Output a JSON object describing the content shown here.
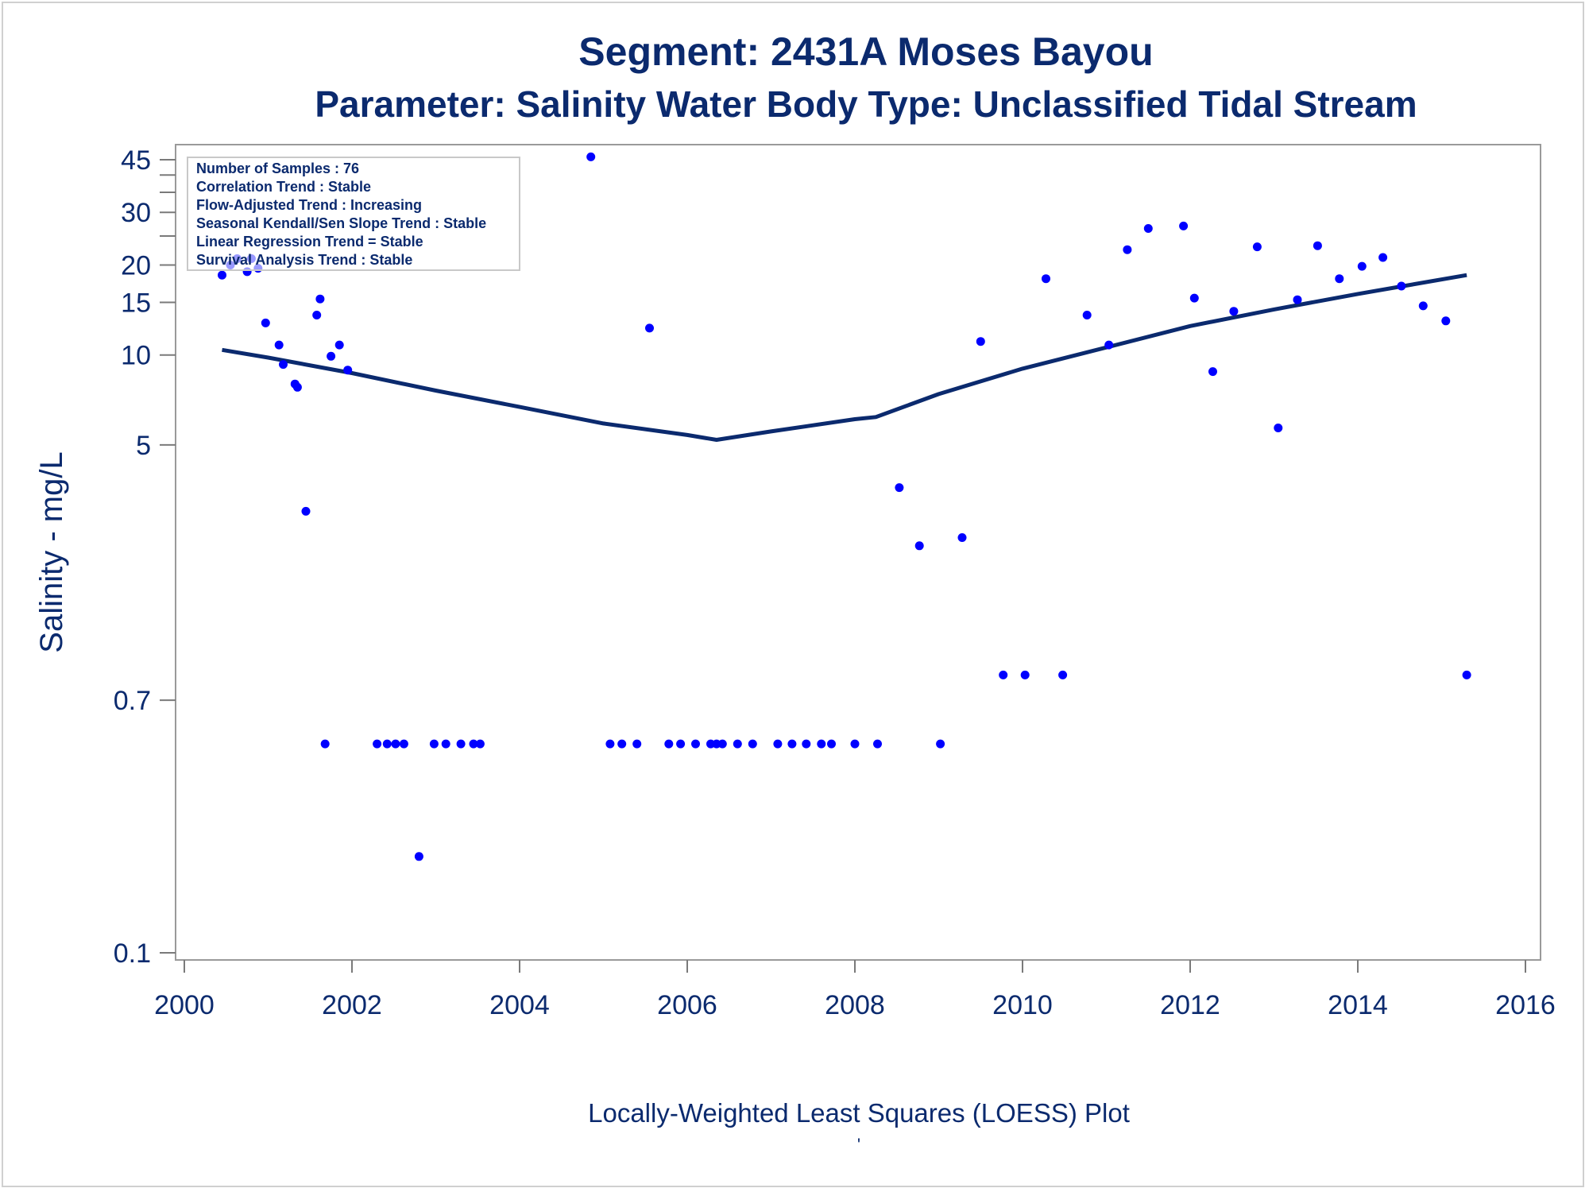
{
  "chart_data": {
    "type": "scatter",
    "title": "Segment: 2431A  Moses Bayou",
    "subtitle": "Parameter: Salinity   Water Body Type: Unclassified Tidal Stream",
    "xlabel": "Locally-Weighted Least Squares (LOESS) Plot",
    "ylabel": "Salinity - mg/L",
    "footnote": "'",
    "y_scale": "log",
    "xlim": [
      2000,
      2016
    ],
    "ylim": [
      0.1,
      50
    ],
    "x_ticks": [
      2000,
      2002,
      2004,
      2006,
      2008,
      2010,
      2012,
      2014,
      2016
    ],
    "x_tick_labels": [
      "2000",
      "2002",
      "2004",
      "2006",
      "2008",
      "2010",
      "2012",
      "2014",
      "2016"
    ],
    "y_ticks": [
      0.1,
      0.7,
      5,
      10,
      15,
      20,
      30,
      45
    ],
    "y_tick_labels": [
      "0.1",
      "0.7",
      "5",
      "10",
      "15",
      "20",
      "30",
      "45"
    ],
    "y_minor_ticks": [
      25,
      35,
      40
    ],
    "grid": false,
    "colors": {
      "points": "#0000ff",
      "line": "#0b2a6e",
      "text": "#0b2a6e"
    },
    "stats_box": {
      "placement": "top-left",
      "lines": [
        "Number of Samples : 76",
        "Correlation Trend : Stable",
        "Flow-Adjusted Trend : Increasing",
        "Seasonal Kendall/Sen Slope Trend : Stable",
        "Linear Regression Trend = Stable",
        "Survival Analysis Trend : Stable"
      ]
    },
    "series": [
      {
        "type": "scatter",
        "points": [
          [
            2000.45,
            18.5
          ],
          [
            2000.55,
            20.0
          ],
          [
            2000.63,
            21.0
          ],
          [
            2000.75,
            19.0
          ],
          [
            2000.8,
            21.0
          ],
          [
            2000.88,
            19.5
          ],
          [
            2000.97,
            12.8
          ],
          [
            2001.13,
            10.8
          ],
          [
            2001.18,
            9.3
          ],
          [
            2001.32,
            8.0
          ],
          [
            2001.35,
            7.8
          ],
          [
            2001.45,
            3.0
          ],
          [
            2001.58,
            13.6
          ],
          [
            2001.62,
            15.4
          ],
          [
            2001.68,
            0.5
          ],
          [
            2001.75,
            9.9
          ],
          [
            2001.85,
            10.8
          ],
          [
            2001.95,
            8.9
          ],
          [
            2002.3,
            0.5
          ],
          [
            2002.42,
            0.5
          ],
          [
            2002.52,
            0.5
          ],
          [
            2002.62,
            0.5
          ],
          [
            2002.8,
            0.21
          ],
          [
            2002.98,
            0.5
          ],
          [
            2003.12,
            0.5
          ],
          [
            2003.3,
            0.5
          ],
          [
            2003.45,
            0.5
          ],
          [
            2003.53,
            0.5
          ],
          [
            2004.85,
            46.0
          ],
          [
            2005.08,
            0.5
          ],
          [
            2005.22,
            0.5
          ],
          [
            2005.4,
            0.5
          ],
          [
            2005.55,
            12.3
          ],
          [
            2005.78,
            0.5
          ],
          [
            2005.92,
            0.5
          ],
          [
            2006.1,
            0.5
          ],
          [
            2006.28,
            0.5
          ],
          [
            2006.35,
            0.5
          ],
          [
            2006.42,
            0.5
          ],
          [
            2006.6,
            0.5
          ],
          [
            2006.78,
            0.5
          ],
          [
            2007.08,
            0.5
          ],
          [
            2007.25,
            0.5
          ],
          [
            2007.42,
            0.5
          ],
          [
            2007.6,
            0.5
          ],
          [
            2007.72,
            0.5
          ],
          [
            2008.0,
            0.5
          ],
          [
            2008.27,
            0.5
          ],
          [
            2008.53,
            3.6
          ],
          [
            2008.77,
            2.3
          ],
          [
            2009.02,
            0.5
          ],
          [
            2009.28,
            2.45
          ],
          [
            2009.5,
            11.1
          ],
          [
            2009.77,
            0.85
          ],
          [
            2010.03,
            0.85
          ],
          [
            2010.28,
            18.0
          ],
          [
            2010.48,
            0.85
          ],
          [
            2010.77,
            13.6
          ],
          [
            2011.03,
            10.8
          ],
          [
            2011.25,
            22.5
          ],
          [
            2011.5,
            26.5
          ],
          [
            2011.92,
            27.0
          ],
          [
            2012.05,
            15.5
          ],
          [
            2012.27,
            8.8
          ],
          [
            2012.52,
            14.0
          ],
          [
            2012.8,
            23.0
          ],
          [
            2013.05,
            5.7
          ],
          [
            2013.28,
            15.3
          ],
          [
            2013.52,
            23.2
          ],
          [
            2013.78,
            18.0
          ],
          [
            2014.05,
            19.8
          ],
          [
            2014.3,
            21.2
          ],
          [
            2014.52,
            17.0
          ],
          [
            2014.78,
            14.6
          ],
          [
            2015.05,
            13.0
          ],
          [
            2015.3,
            0.85
          ]
        ]
      },
      {
        "type": "line",
        "points": [
          [
            2000.45,
            10.4
          ],
          [
            2001.0,
            9.8
          ],
          [
            2002.0,
            8.7
          ],
          [
            2003.0,
            7.6
          ],
          [
            2004.0,
            6.7
          ],
          [
            2005.0,
            5.9
          ],
          [
            2006.0,
            5.4
          ],
          [
            2006.35,
            5.2
          ],
          [
            2007.0,
            5.55
          ],
          [
            2008.0,
            6.1
          ],
          [
            2008.25,
            6.2
          ],
          [
            2009.0,
            7.4
          ],
          [
            2010.0,
            9.0
          ],
          [
            2011.0,
            10.6
          ],
          [
            2012.0,
            12.5
          ],
          [
            2013.0,
            14.2
          ],
          [
            2014.0,
            16.0
          ],
          [
            2015.3,
            18.5
          ]
        ]
      }
    ]
  }
}
